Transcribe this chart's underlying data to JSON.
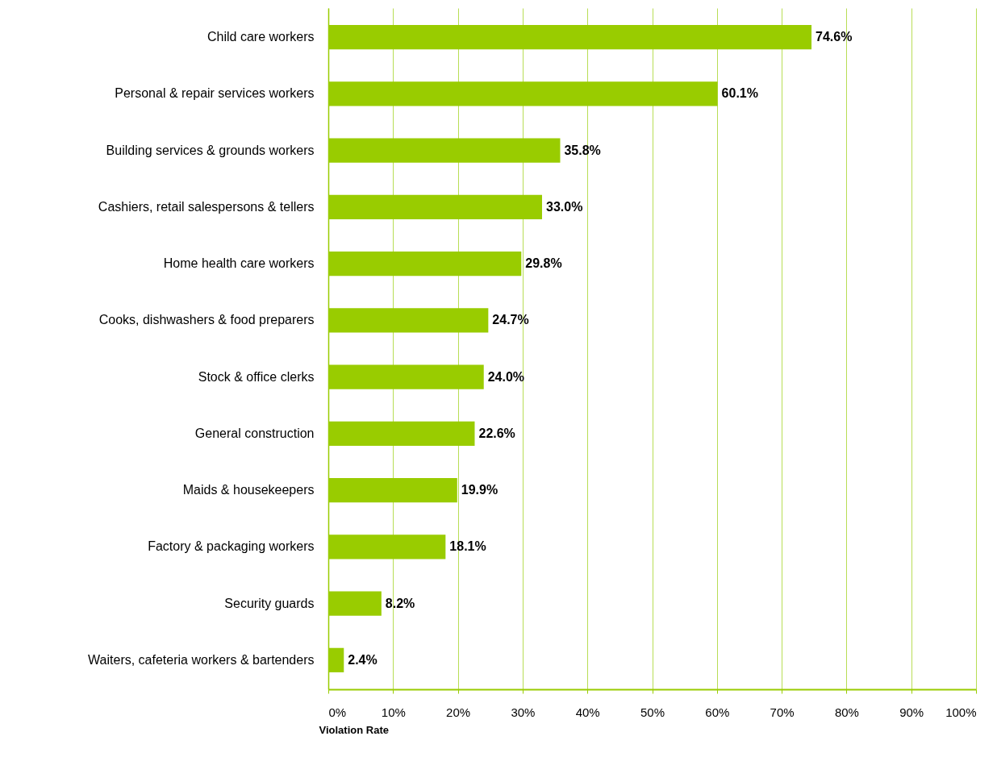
{
  "chart_data": {
    "type": "bar",
    "orientation": "horizontal",
    "xlabel": "Violation Rate",
    "categories": [
      "Child care workers",
      "Personal & repair services workers",
      "Building services & grounds workers",
      "Cashiers, retail salespersons & tellers",
      "Home health care workers",
      "Cooks, dishwashers & food preparers",
      "Stock & office clerks",
      "General construction",
      "Maids & housekeepers",
      "Factory & packaging workers",
      "Security guards",
      "Waiters, cafeteria workers & bartenders"
    ],
    "values": [
      74.6,
      60.1,
      35.8,
      33.0,
      29.8,
      24.7,
      24.0,
      22.6,
      19.9,
      18.1,
      8.2,
      2.4
    ],
    "value_labels": [
      "74.6%",
      "60.1%",
      "35.8%",
      "33.0%",
      "29.8%",
      "24.7%",
      "24.0%",
      "22.6%",
      "19.9%",
      "18.1%",
      "8.2%",
      "2.4%"
    ],
    "color": "#99cc00",
    "xlim": [
      0,
      100
    ],
    "xticks": [
      {
        "value": 0,
        "label": "0%"
      },
      {
        "value": 10,
        "label": "10%"
      },
      {
        "value": 20,
        "label": "20%"
      },
      {
        "value": 30,
        "label": "30%"
      },
      {
        "value": 40,
        "label": "40%"
      },
      {
        "value": 50,
        "label": "50%"
      },
      {
        "value": 60,
        "label": "60%"
      },
      {
        "value": 70,
        "label": "70%"
      },
      {
        "value": 80,
        "label": "80%"
      },
      {
        "value": 90,
        "label": "90%"
      },
      {
        "value": 100,
        "label": "100%"
      }
    ],
    "grid": "x"
  }
}
